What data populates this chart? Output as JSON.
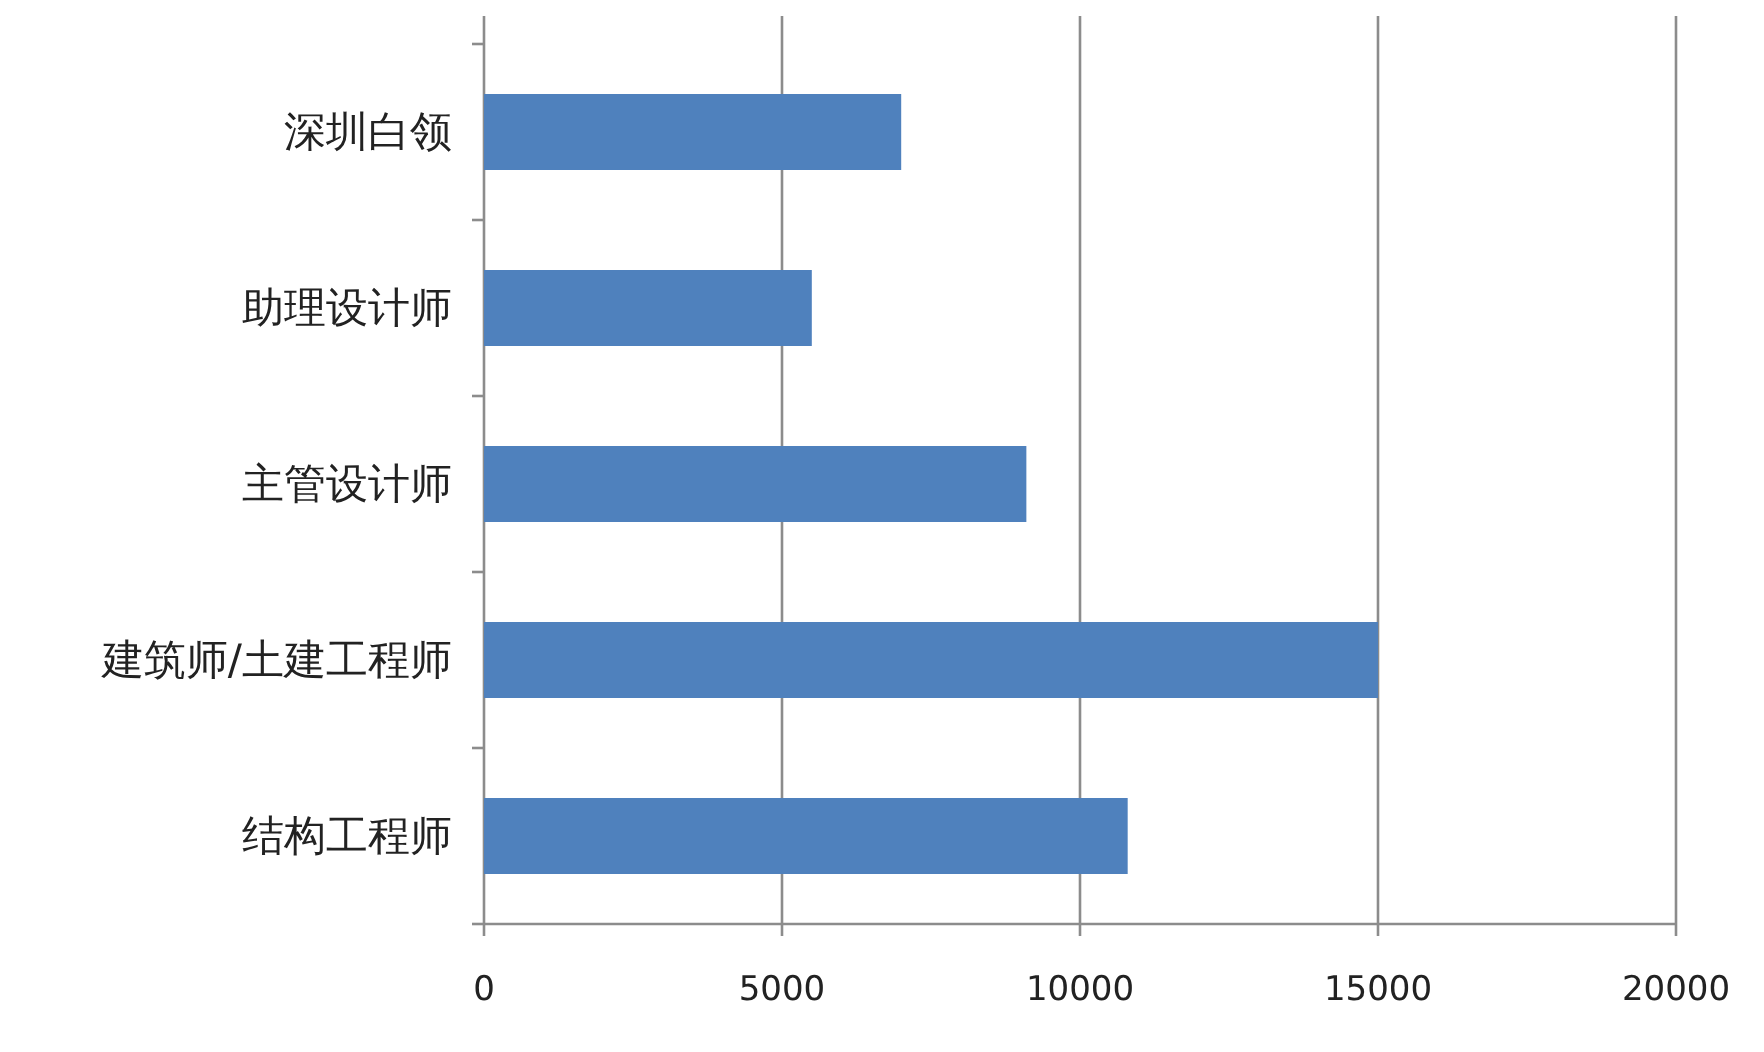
{
  "chart_data": {
    "type": "bar",
    "orientation": "horizontal",
    "categories": [
      "深圳白领",
      "助理设计师",
      "主管设计师",
      "建筑师/土建工程师",
      "结构工程师"
    ],
    "values": [
      7000,
      5500,
      9100,
      15000,
      10800
    ],
    "color": "#4f81bd",
    "xlim": [
      0,
      20000
    ],
    "xticks": [
      0,
      5000,
      10000,
      15000,
      20000
    ],
    "grid": "x"
  }
}
